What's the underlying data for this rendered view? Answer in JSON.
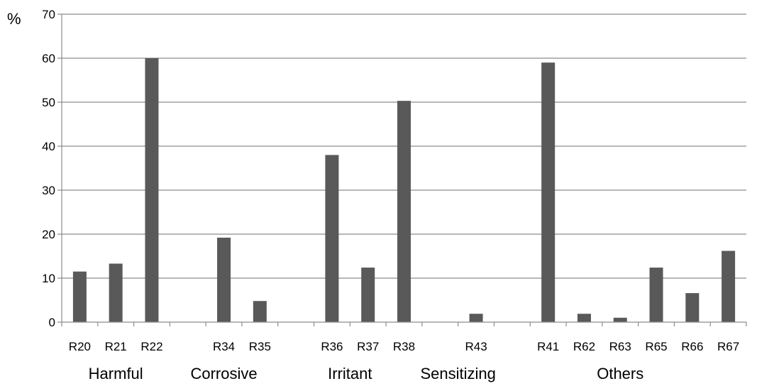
{
  "chart_data": {
    "type": "bar",
    "unit_label": "%",
    "ylim": [
      0,
      70
    ],
    "y_ticks": [
      0,
      10,
      20,
      30,
      40,
      50,
      60,
      70
    ],
    "grid": true,
    "legend": "none",
    "bar_color": "#595959",
    "grid_color": "#8c8c8c",
    "categories": [
      "R20",
      "R21",
      "R22",
      "",
      "R34",
      "R35",
      "",
      "R36",
      "R37",
      "R38",
      "",
      "R43",
      "",
      "R41",
      "R62",
      "R63",
      "R65",
      "R66",
      "R67"
    ],
    "values": [
      11.5,
      13.3,
      60,
      null,
      19.2,
      4.8,
      null,
      38,
      12.4,
      50.3,
      null,
      1.9,
      null,
      59,
      1.9,
      1.0,
      12.4,
      6.6,
      16.2
    ],
    "groups": [
      {
        "name": "Harmful",
        "from": 0,
        "to": 3
      },
      {
        "name": "Corrosive",
        "from": 3,
        "to": 6
      },
      {
        "name": "Irritant",
        "from": 6,
        "to": 10
      },
      {
        "name": "Sensitizing",
        "from": 10,
        "to": 12
      },
      {
        "name": "Others",
        "from": 12,
        "to": 19
      }
    ]
  }
}
